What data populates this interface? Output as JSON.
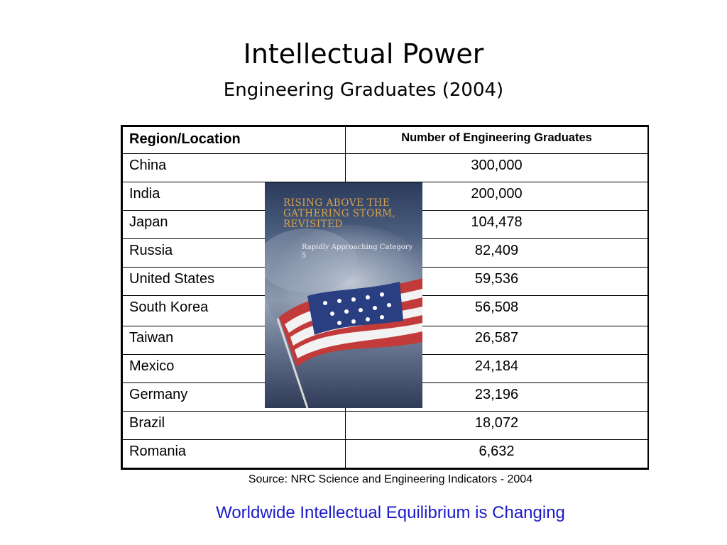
{
  "slide": {
    "title": "Intellectual Power",
    "subtitle": "Engineering Graduates (2004)",
    "source": "Source: NRC Science and Engineering Indicators - 2004",
    "tagline": "Worldwide Intellectual Equilibrium is Changing",
    "tagline_color": "#1a1ac8"
  },
  "table": {
    "headers": [
      "Region/Location",
      "Number of Engineering Graduates"
    ],
    "rows": [
      {
        "region": "China",
        "graduates": "300,000"
      },
      {
        "region": "India",
        "graduates": "200,000"
      },
      {
        "region": "Japan",
        "graduates": "104,478"
      },
      {
        "region": "Russia",
        "graduates": "82,409"
      },
      {
        "region": "United States",
        "graduates": "59,536"
      },
      {
        "region": "South Korea",
        "graduates": "56,508"
      },
      {
        "region": "Taiwan",
        "graduates": "26,587"
      },
      {
        "region": "Mexico",
        "graduates": "24,184"
      },
      {
        "region": "Germany",
        "graduates": "23,196"
      },
      {
        "region": "Brazil",
        "graduates": "18,072"
      },
      {
        "region": "Romania",
        "graduates": "6,632"
      }
    ]
  },
  "book_cover": {
    "title": "RISING ABOVE THE GATHERING STORM, REVISITED",
    "subtitle": "Rapidly Approaching Category 5",
    "title_color": "#d9a24a"
  }
}
